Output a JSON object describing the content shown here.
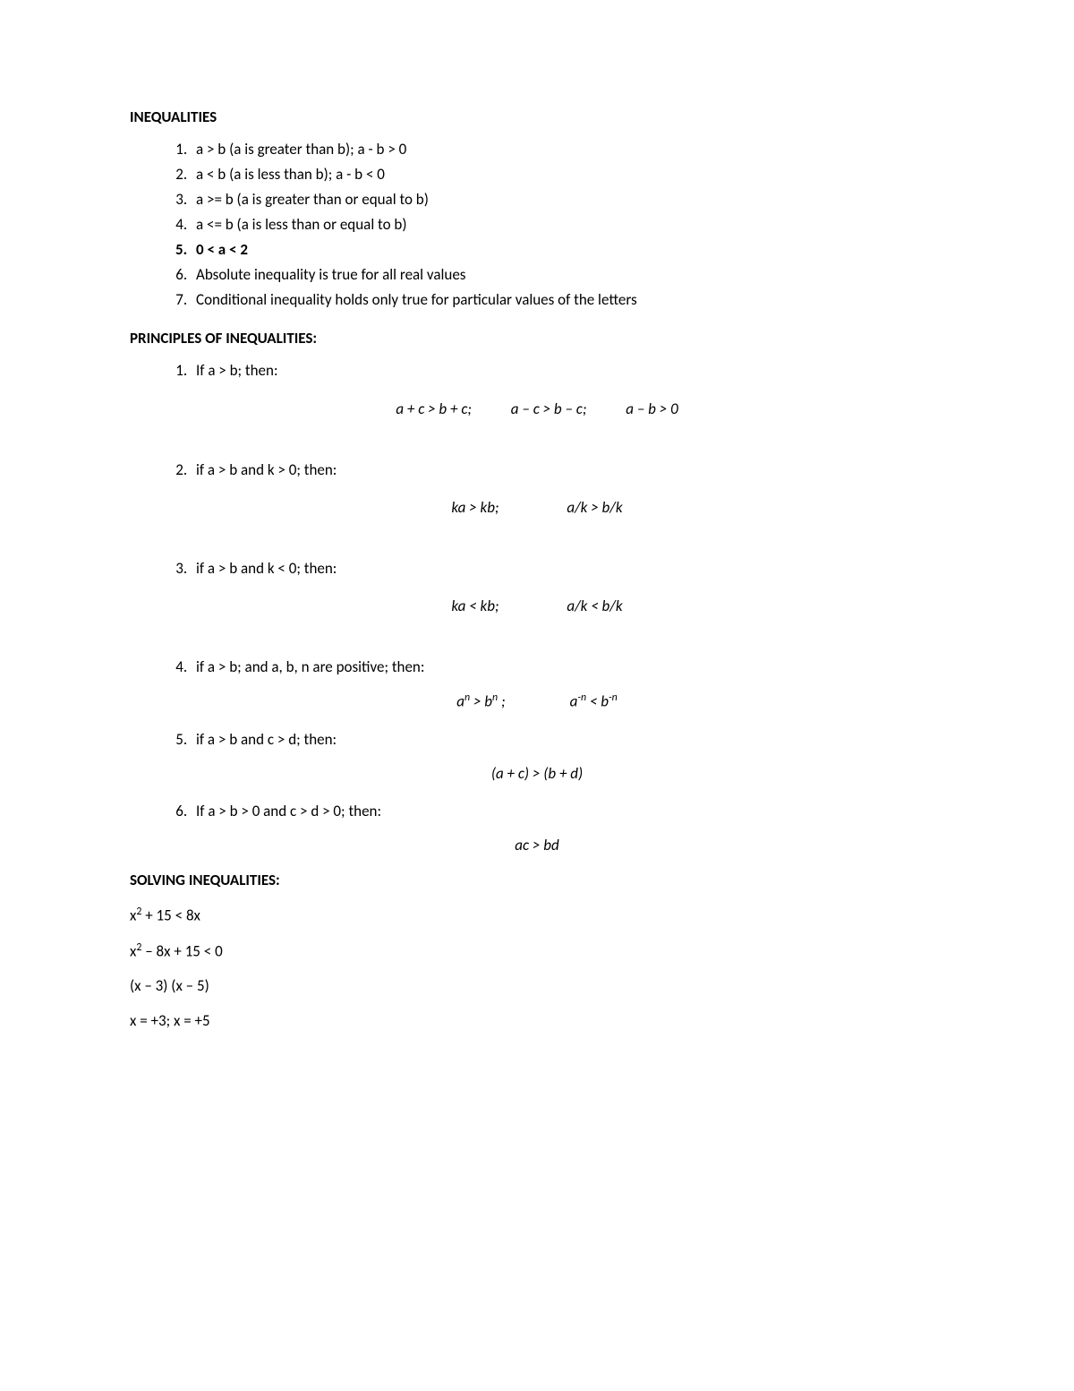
{
  "typography": {
    "font_family": "Calibri",
    "body_fontsize_pt": 12,
    "text_color": "#000000",
    "background_color": "#ffffff"
  },
  "section1": {
    "heading": "INEQUALITIES",
    "items": [
      "a > b (a is greater than b); a - b > 0",
      "a < b (a is less than b); a - b < 0",
      "a >= b (a is greater than or equal to b)",
      "a <= b (a is less than or equal to b)",
      "0 < a < 2",
      "Absolute inequality is true for all real values",
      "Conditional inequality holds only true for particular values of the letters"
    ],
    "bold_index": 4
  },
  "section2": {
    "heading": "PRINCIPLES OF INEQUALITIES:",
    "principles": [
      {
        "text": "If a > b; then:",
        "formula_parts": [
          "a + c > b + c;",
          "a – c > b – c;",
          "a – b > 0"
        ]
      },
      {
        "text": "if a > b and k > 0; then:",
        "formula_parts": [
          "ka > kb;",
          "a/k > b/k"
        ]
      },
      {
        "text": "if a > b and k < 0; then:",
        "formula_parts": [
          "ka < kb;",
          "a/k < b/k"
        ]
      },
      {
        "text": "if a > b; and a, b, n are positive; then:",
        "formula_html": "a<sup>n</sup> > b<sup>n</sup> ;<span class=\"gap-wide\"></span>a<sup>-n</sup> < b<sup>-n</sup>"
      },
      {
        "text": "if a > b and c > d; then:",
        "formula_parts": [
          "(a + c) > (b + d)"
        ]
      },
      {
        "text": "If a > b > 0 and c > d > 0; then:",
        "formula_parts": [
          "ac > bd"
        ]
      }
    ]
  },
  "section3": {
    "heading": "SOLVING INEQUALITIES:",
    "lines": [
      "x<sup>2</sup> + 15 < 8x",
      "x<sup>2</sup> – 8x + 15 < 0",
      "(x – 3) (x – 5)",
      "x = +3; x = +5"
    ]
  }
}
